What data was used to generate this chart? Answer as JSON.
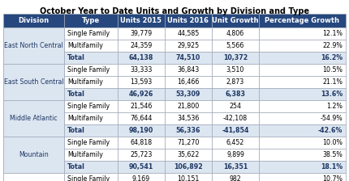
{
  "title": "October Year to Date Units and Growth by Division and Type",
  "columns": [
    "Division",
    "Type",
    "Units 2015",
    "Units 2016",
    "Unit Growth",
    "Percentage Growth"
  ],
  "header_bg": "#26487e",
  "header_fg": "#ffffff",
  "division_bg": "#dce6f1",
  "division_fg": "#1f3864",
  "row_bg_white": "#ffffff",
  "row_bg_total": "#dce6f1",
  "total_fg": "#1f3864",
  "border_color": "#a0a8b8",
  "rows": [
    {
      "division": "East North Central",
      "type": "Single Family",
      "u2015": "39,779",
      "u2016": "44,585",
      "ug": "4,806",
      "pg": "12.1%",
      "is_total": false
    },
    {
      "division": "",
      "type": "Multifamily",
      "u2015": "24,359",
      "u2016": "29,925",
      "ug": "5,566",
      "pg": "22.9%",
      "is_total": false
    },
    {
      "division": "",
      "type": "Total",
      "u2015": "64,138",
      "u2016": "74,510",
      "ug": "10,372",
      "pg": "16.2%",
      "is_total": true
    },
    {
      "division": "East South Central",
      "type": "Single Family",
      "u2015": "33,333",
      "u2016": "36,843",
      "ug": "3,510",
      "pg": "10.5%",
      "is_total": false
    },
    {
      "division": "",
      "type": "Multifamily",
      "u2015": "13,593",
      "u2016": "16,466",
      "ug": "2,873",
      "pg": "21.1%",
      "is_total": false
    },
    {
      "division": "",
      "type": "Total",
      "u2015": "46,926",
      "u2016": "53,309",
      "ug": "6,383",
      "pg": "13.6%",
      "is_total": true
    },
    {
      "division": "Middle Atlantic",
      "type": "Single Family",
      "u2015": "21,546",
      "u2016": "21,800",
      "ug": "254",
      "pg": "1.2%",
      "is_total": false
    },
    {
      "division": "",
      "type": "Multifamily",
      "u2015": "76,644",
      "u2016": "34,536",
      "ug": "-42,108",
      "pg": "-54.9%",
      "is_total": false
    },
    {
      "division": "",
      "type": "Total",
      "u2015": "98,190",
      "u2016": "56,336",
      "ug": "-41,854",
      "pg": "-42.6%",
      "is_total": true
    },
    {
      "division": "Mountain",
      "type": "Single Family",
      "u2015": "64,818",
      "u2016": "71,270",
      "ug": "6,452",
      "pg": "10.0%",
      "is_total": false
    },
    {
      "division": "",
      "type": "Multifamily",
      "u2015": "25,723",
      "u2016": "35,622",
      "ug": "9,899",
      "pg": "38.5%",
      "is_total": false
    },
    {
      "division": "",
      "type": "Total",
      "u2015": "90,541",
      "u2016": "106,892",
      "ug": "16,351",
      "pg": "18.1%",
      "is_total": true
    },
    {
      "division": "",
      "type": "Single Family",
      "u2015": "9,169",
      "u2016": "10,151",
      "ug": "982",
      "pg": "10.7%",
      "is_total": false
    }
  ],
  "title_fontsize": 7.0,
  "header_fontsize": 6.0,
  "cell_fontsize": 5.7,
  "div_fontsize": 5.7
}
